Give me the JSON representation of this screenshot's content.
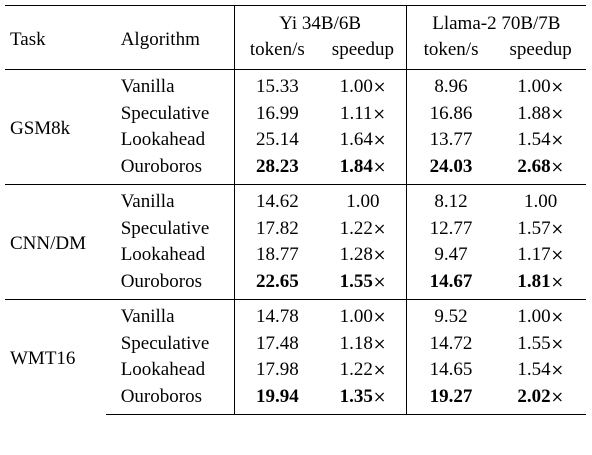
{
  "header": {
    "task": "Task",
    "algorithm": "Algorithm",
    "model_groups": [
      "Yi 34B/6B",
      "Llama-2 70B/7B"
    ],
    "metrics": [
      "token/s",
      "speedup",
      "token/s",
      "speedup"
    ]
  },
  "groups": [
    {
      "task": "GSM8k",
      "rows": [
        {
          "algorithm": "Vanilla",
          "yi_tps": "15.33",
          "yi_sp": "1.00",
          "ll_tps": "8.96",
          "ll_sp": "1.00"
        },
        {
          "algorithm": "Speculative",
          "yi_tps": "16.99",
          "yi_sp": "1.11",
          "ll_tps": "16.86",
          "ll_sp": "1.88"
        },
        {
          "algorithm": "Lookahead",
          "yi_tps": "25.14",
          "yi_sp": "1.64",
          "ll_tps": "13.77",
          "ll_sp": "1.54"
        },
        {
          "algorithm": "Ouroboros",
          "yi_tps": "28.23",
          "yi_sp": "1.84",
          "ll_tps": "24.03",
          "ll_sp": "2.68"
        }
      ]
    },
    {
      "task": "CNN/DM",
      "rows": [
        {
          "algorithm": "Vanilla",
          "yi_tps": "14.62",
          "yi_sp": "1.00",
          "ll_tps": "8.12",
          "ll_sp": "1.00"
        },
        {
          "algorithm": "Speculative",
          "yi_tps": "17.82",
          "yi_sp": "1.22",
          "ll_tps": "12.77",
          "ll_sp": "1.57"
        },
        {
          "algorithm": "Lookahead",
          "yi_tps": "18.77",
          "yi_sp": "1.28",
          "ll_tps": "9.47",
          "ll_sp": "1.17"
        },
        {
          "algorithm": "Ouroboros",
          "yi_tps": "22.65",
          "yi_sp": "1.55",
          "ll_tps": "14.67",
          "ll_sp": "1.81"
        }
      ]
    },
    {
      "task": "WMT16",
      "rows": [
        {
          "algorithm": "Vanilla",
          "yi_tps": "14.78",
          "yi_sp": "1.00",
          "ll_tps": "9.52",
          "ll_sp": "1.00"
        },
        {
          "algorithm": "Speculative",
          "yi_tps": "17.48",
          "yi_sp": "1.18",
          "ll_tps": "14.72",
          "ll_sp": "1.55"
        },
        {
          "algorithm": "Lookahead",
          "yi_tps": "17.98",
          "yi_sp": "1.22",
          "ll_tps": "14.65",
          "ll_sp": "1.54"
        },
        {
          "algorithm": "Ouroboros",
          "yi_tps": "19.94",
          "yi_sp": "1.35",
          "ll_tps": "19.27",
          "ll_sp": "2.02"
        }
      ]
    }
  ],
  "times_symbol": "×"
}
